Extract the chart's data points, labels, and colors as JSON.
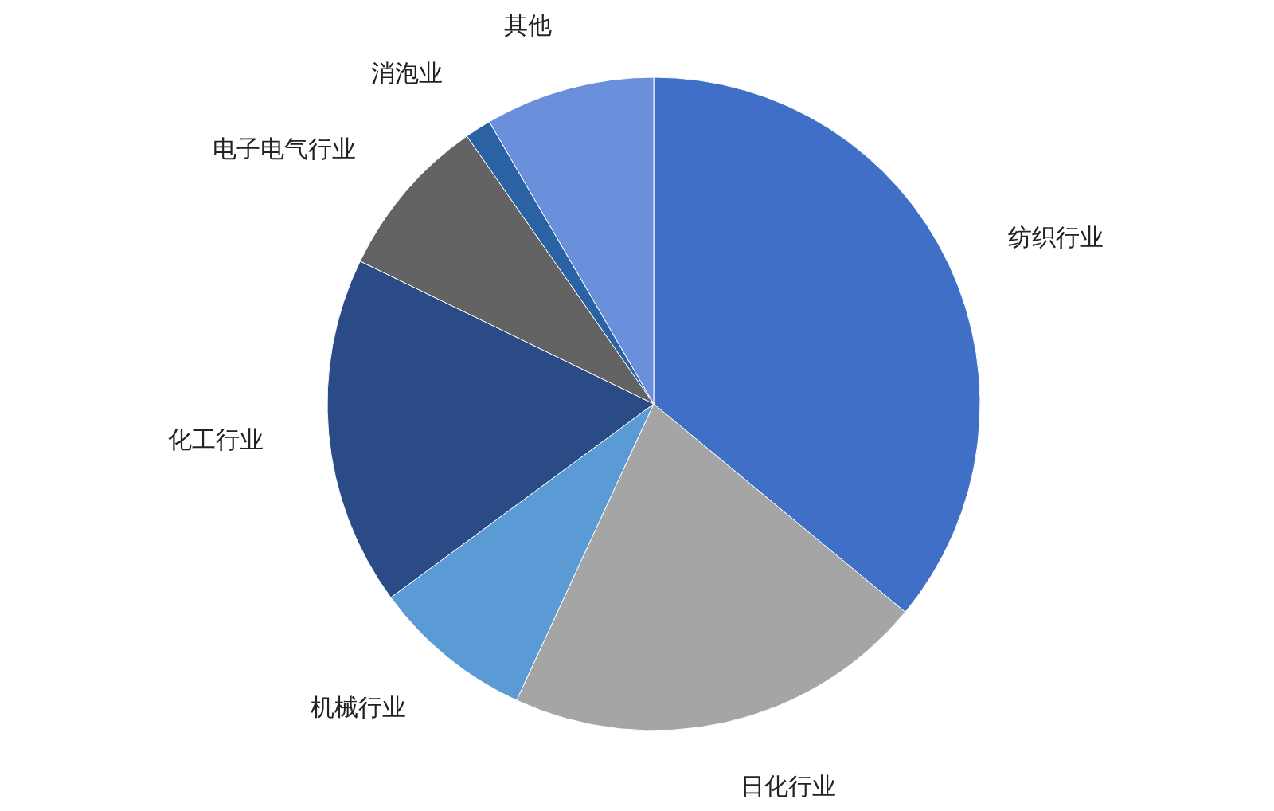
{
  "chart_data": {
    "type": "pie",
    "categories": [
      "纺织行业",
      "日化行业",
      "机械行业",
      "化工行业",
      "电子电气行业",
      "消泡业",
      "其他"
    ],
    "values": [
      36,
      20.9,
      8,
      17.3,
      8.1,
      1.3,
      8.4
    ],
    "colors": [
      "#3f6fc6",
      "#a5a5a5",
      "#5b9bd5",
      "#2b4b87",
      "#636363",
      "#2a62a3",
      "#6a90dc"
    ]
  }
}
